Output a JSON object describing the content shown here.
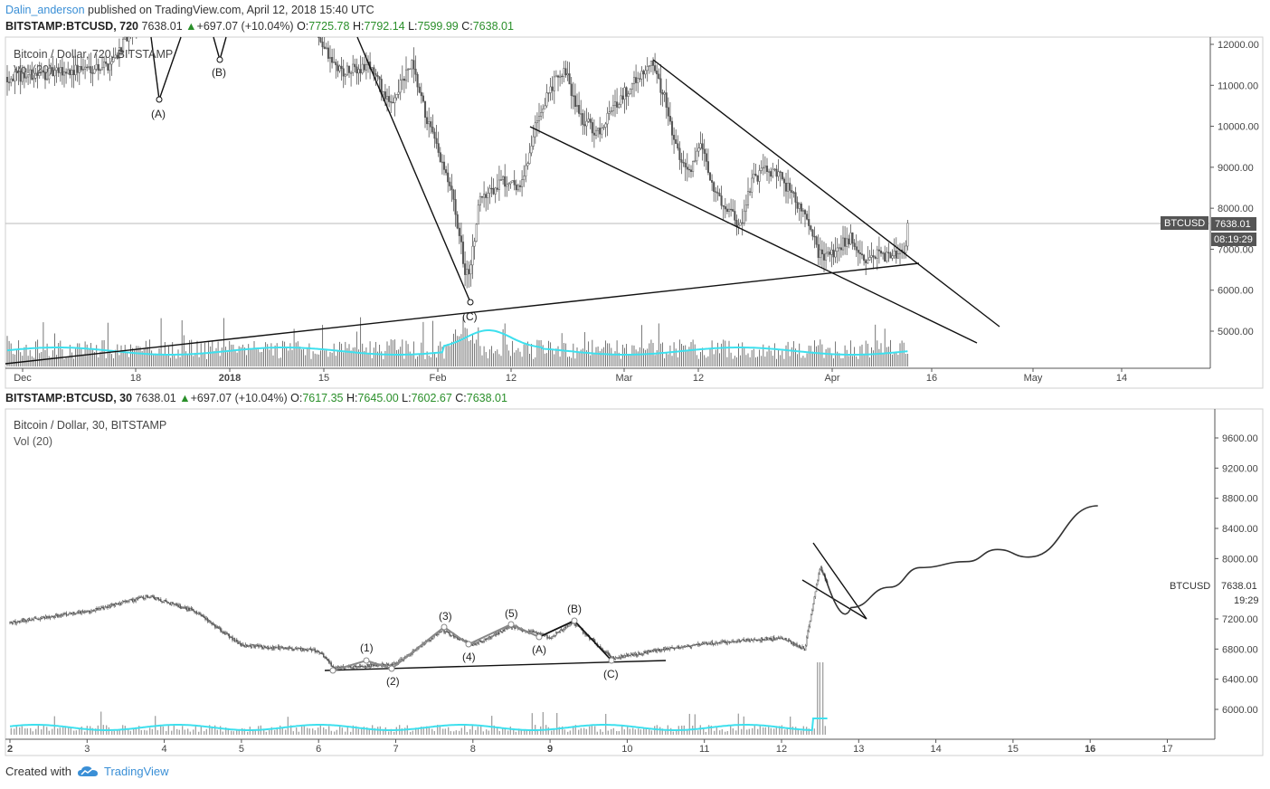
{
  "header": {
    "author": "Dalin_anderson",
    "published_text": "published on TradingView.com, April 12, 2018 15:40 UTC"
  },
  "chart1": {
    "symbol": "BITSTAMP:BTCUSD, 720",
    "last": "7638.01",
    "change": "+697.07 (+10.04%)",
    "o_label": "O:",
    "o": "7725.78",
    "h_label": "H:",
    "h": "7792.14",
    "l_label": "L:",
    "l": "7599.99",
    "c_label": "C:",
    "c": "7638.01",
    "legend": "Bitcoin / Dollar, 720, BITSTAMP",
    "vol_legend": "Vol (20)",
    "price_tag_symbol": "BTCUSD",
    "price_tag_value": "7638.01",
    "countdown": "08:19:29"
  },
  "chart2": {
    "symbol": "BITSTAMP:BTCUSD, 30",
    "last": "7638.01",
    "change": "+697.07 (+10.04%)",
    "o_label": "O:",
    "o": "7617.35",
    "h_label": "H:",
    "h": "7645.00",
    "l_label": "L:",
    "l": "7602.67",
    "c_label": "C:",
    "c": "7638.01",
    "legend": "Bitcoin / Dollar, 30, BITSTAMP",
    "vol_legend": "Vol (20)",
    "price_tag_symbol": "BTCUSD",
    "price_tag_value": "7638.01",
    "countdown": "19:29"
  },
  "footer": {
    "created_with": "Created with",
    "brand": "TradingView",
    "brand_icon": "tradingview-cloud-icon"
  },
  "colors": {
    "volume_ma": "#3ee0ee",
    "up_arrow": "#2a8f2a",
    "link": "#3a8fd6",
    "price_tag_bg": "#555555"
  },
  "chart_data": [
    {
      "type": "candlestick",
      "title": "Bitcoin / Dollar, 720, BITSTAMP",
      "timeframe": "720",
      "x_tick_labels": [
        "Dec",
        "18",
        "2018",
        "15",
        "Feb",
        "12",
        "Mar",
        "12",
        "Apr",
        "16",
        "May",
        "14"
      ],
      "y_tick_labels": [
        "12000.00",
        "11000.00",
        "10000.00",
        "9000.00",
        "8000.00",
        "7000.00",
        "6000.00",
        "5000.00"
      ],
      "ylim": [
        4200,
        12100
      ],
      "last_price": 7638.01,
      "close_series": [
        {
          "x": "Dec",
          "y": 11200
        },
        {
          "x": "18",
          "y": 11500
        },
        {
          "x": "2018",
          "y": 13500
        },
        {
          "x": "15",
          "y": 11300
        },
        {
          "x": "Feb",
          "y": 9200
        },
        {
          "x": "Feb 6",
          "y": 6200
        },
        {
          "x": "12",
          "y": 8500
        },
        {
          "x": "Feb 20",
          "y": 11200
        },
        {
          "x": "Mar",
          "y": 10800
        },
        {
          "x": "Mar 5",
          "y": 11500
        },
        {
          "x": "12",
          "y": 9000
        },
        {
          "x": "Mar 18",
          "y": 7500
        },
        {
          "x": "Mar 22",
          "y": 8900
        },
        {
          "x": "Apr",
          "y": 6800
        },
        {
          "x": "Apr 6",
          "y": 6600
        },
        {
          "x": "Apr 12",
          "y": 7638
        }
      ],
      "wave_labels": [
        "(A)",
        "(B)",
        "(C)"
      ],
      "volume_legend": "Vol (20)"
    },
    {
      "type": "candlestick",
      "title": "Bitcoin / Dollar, 30, BITSTAMP",
      "timeframe": "30",
      "x_tick_labels": [
        "2",
        "3",
        "4",
        "5",
        "6",
        "7",
        "8",
        "9",
        "10",
        "11",
        "12",
        "13",
        "14",
        "15",
        "16",
        "17"
      ],
      "y_tick_labels": [
        "9600.00",
        "9200.00",
        "8800.00",
        "8400.00",
        "8000.00",
        "7200.00",
        "6800.00",
        "6400.00",
        "6000.00"
      ],
      "ylim": [
        5800,
        9800
      ],
      "last_price": 7638.01,
      "close_series": [
        {
          "x": 2,
          "y": 7150
        },
        {
          "x": 3,
          "y": 7300
        },
        {
          "x": 3.8,
          "y": 7500
        },
        {
          "x": 4.4,
          "y": 7300
        },
        {
          "x": 5,
          "y": 6850
        },
        {
          "x": 6,
          "y": 6780
        },
        {
          "x": 6.2,
          "y": 6550
        },
        {
          "x": 7,
          "y": 6600
        },
        {
          "x": 7.6,
          "y": 7050
        },
        {
          "x": 8,
          "y": 6850
        },
        {
          "x": 8.5,
          "y": 7100
        },
        {
          "x": 9,
          "y": 6950
        },
        {
          "x": 9.3,
          "y": 7150
        },
        {
          "x": 9.8,
          "y": 6680
        },
        {
          "x": 10.5,
          "y": 6800
        },
        {
          "x": 11,
          "y": 6870
        },
        {
          "x": 12,
          "y": 6950
        },
        {
          "x": 12.3,
          "y": 6800
        },
        {
          "x": 12.5,
          "y": 7900
        },
        {
          "x": 12.6,
          "y": 7638
        }
      ],
      "projection": [
        {
          "x": 12.9,
          "y": 7350
        },
        {
          "x": 13.4,
          "y": 7620
        },
        {
          "x": 13.8,
          "y": 7880
        },
        {
          "x": 14.4,
          "y": 7960
        },
        {
          "x": 14.8,
          "y": 8120
        },
        {
          "x": 15.2,
          "y": 8020
        },
        {
          "x": 16.1,
          "y": 8700
        }
      ],
      "wave_labels": [
        "(1)",
        "(2)",
        "(3)",
        "(4)",
        "(5)",
        "(A)",
        "(B)",
        "(C)"
      ],
      "volume_legend": "Vol (20)"
    }
  ]
}
